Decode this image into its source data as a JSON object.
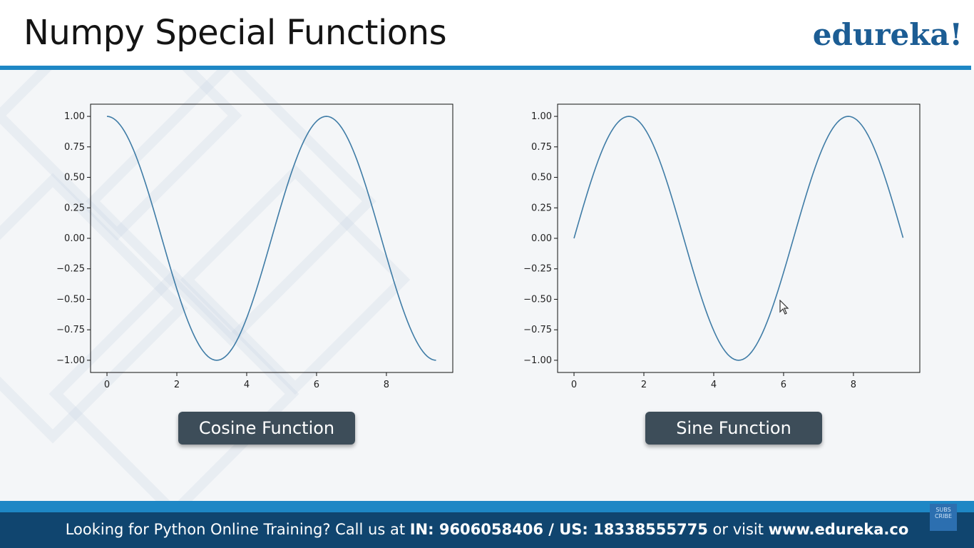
{
  "header": {
    "title": "Numpy Special Functions",
    "logo": "edureka!"
  },
  "captions": {
    "cosine": "Cosine Function",
    "sine": "Sine Function"
  },
  "footer": {
    "prefix": "Looking for Python Online Training? Call us at ",
    "phone": "IN: 9606058406 / US: 18338555775",
    "middle": " or visit ",
    "site": "www.edureka.co",
    "badge": "SUBS CRIBE"
  },
  "colors": {
    "line": "#3f7ca6",
    "accent_blue": "#1e87c5",
    "footer_bg": "#10456f",
    "button_bg": "#3d4d59",
    "logo": "#1c5d94"
  },
  "chart_data": [
    {
      "type": "line",
      "function": "cos",
      "x_range": [
        0,
        9.42
      ],
      "samples": 150,
      "xlim": [
        -0.47,
        9.9
      ],
      "ylim": [
        -1.1,
        1.1
      ],
      "x_ticks": [
        0,
        2,
        4,
        6,
        8
      ],
      "x_tick_labels": [
        "0",
        "2",
        "4",
        "6",
        "8"
      ],
      "y_ticks": [
        1.0,
        0.75,
        0.5,
        0.25,
        0.0,
        -0.25,
        -0.5,
        -0.75,
        -1.0
      ],
      "y_tick_labels": [
        "1.00",
        "0.75",
        "0.50",
        "0.25",
        "0.00",
        "−0.25",
        "−0.50",
        "−0.75",
        "−1.00"
      ],
      "grid": false,
      "title": "",
      "xlabel": "",
      "ylabel": ""
    },
    {
      "type": "line",
      "function": "sin",
      "x_range": [
        0,
        9.42
      ],
      "samples": 150,
      "xlim": [
        -0.47,
        9.9
      ],
      "ylim": [
        -1.1,
        1.1
      ],
      "x_ticks": [
        0,
        2,
        4,
        6,
        8
      ],
      "x_tick_labels": [
        "0",
        "2",
        "4",
        "6",
        "8"
      ],
      "y_ticks": [
        1.0,
        0.75,
        0.5,
        0.25,
        0.0,
        -0.25,
        -0.5,
        -0.75,
        -1.0
      ],
      "y_tick_labels": [
        "1.00",
        "0.75",
        "0.50",
        "0.25",
        "0.00",
        "−0.25",
        "−0.50",
        "−0.75",
        "−1.00"
      ],
      "grid": false,
      "title": "",
      "xlabel": "",
      "ylabel": ""
    }
  ]
}
